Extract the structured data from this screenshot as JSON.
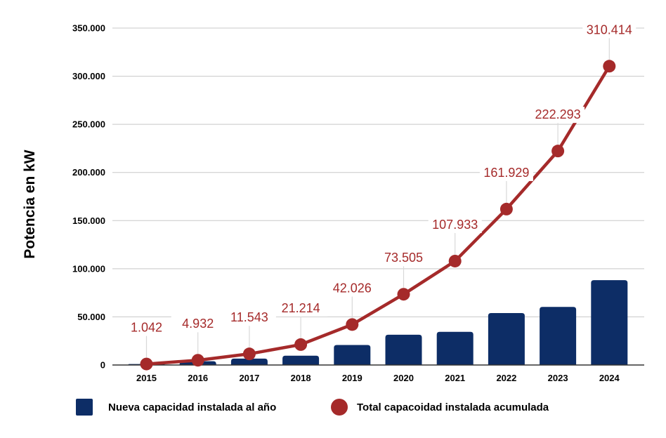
{
  "chart_data": {
    "type": "bar",
    "ylabel": "Potencia en kW",
    "xlabel": "",
    "title": "",
    "ylim": [
      0,
      350000
    ],
    "yticks": [
      0,
      50000,
      100000,
      150000,
      200000,
      250000,
      300000,
      350000
    ],
    "ytick_labels": [
      "0",
      "50.000",
      "100.000",
      "150.000",
      "200.000",
      "250.000",
      "300.000",
      "350.000"
    ],
    "grid": true,
    "legend_position": "bottom",
    "categories": [
      "2015",
      "2016",
      "2017",
      "2018",
      "2019",
      "2020",
      "2021",
      "2022",
      "2023",
      "2024"
    ],
    "series": [
      {
        "name": "Nueva capacidad instalada al año",
        "type": "bar",
        "color": "#0d2d66",
        "values": [
          1042,
          3890,
          6611,
          9671,
          20812,
          31479,
          34428,
          53996,
          60364,
          88121
        ]
      },
      {
        "name": "Total capacoidad instalada acumulada",
        "type": "line",
        "color": "#a52a2a",
        "values": [
          1042,
          4932,
          11543,
          21214,
          42026,
          73505,
          107933,
          161929,
          222293,
          310414
        ],
        "data_labels": [
          "1.042",
          "4.932",
          "11.543",
          "21.214",
          "42.026",
          "73.505",
          "107.933",
          "161.929",
          "222.293",
          "310.414"
        ]
      }
    ]
  }
}
